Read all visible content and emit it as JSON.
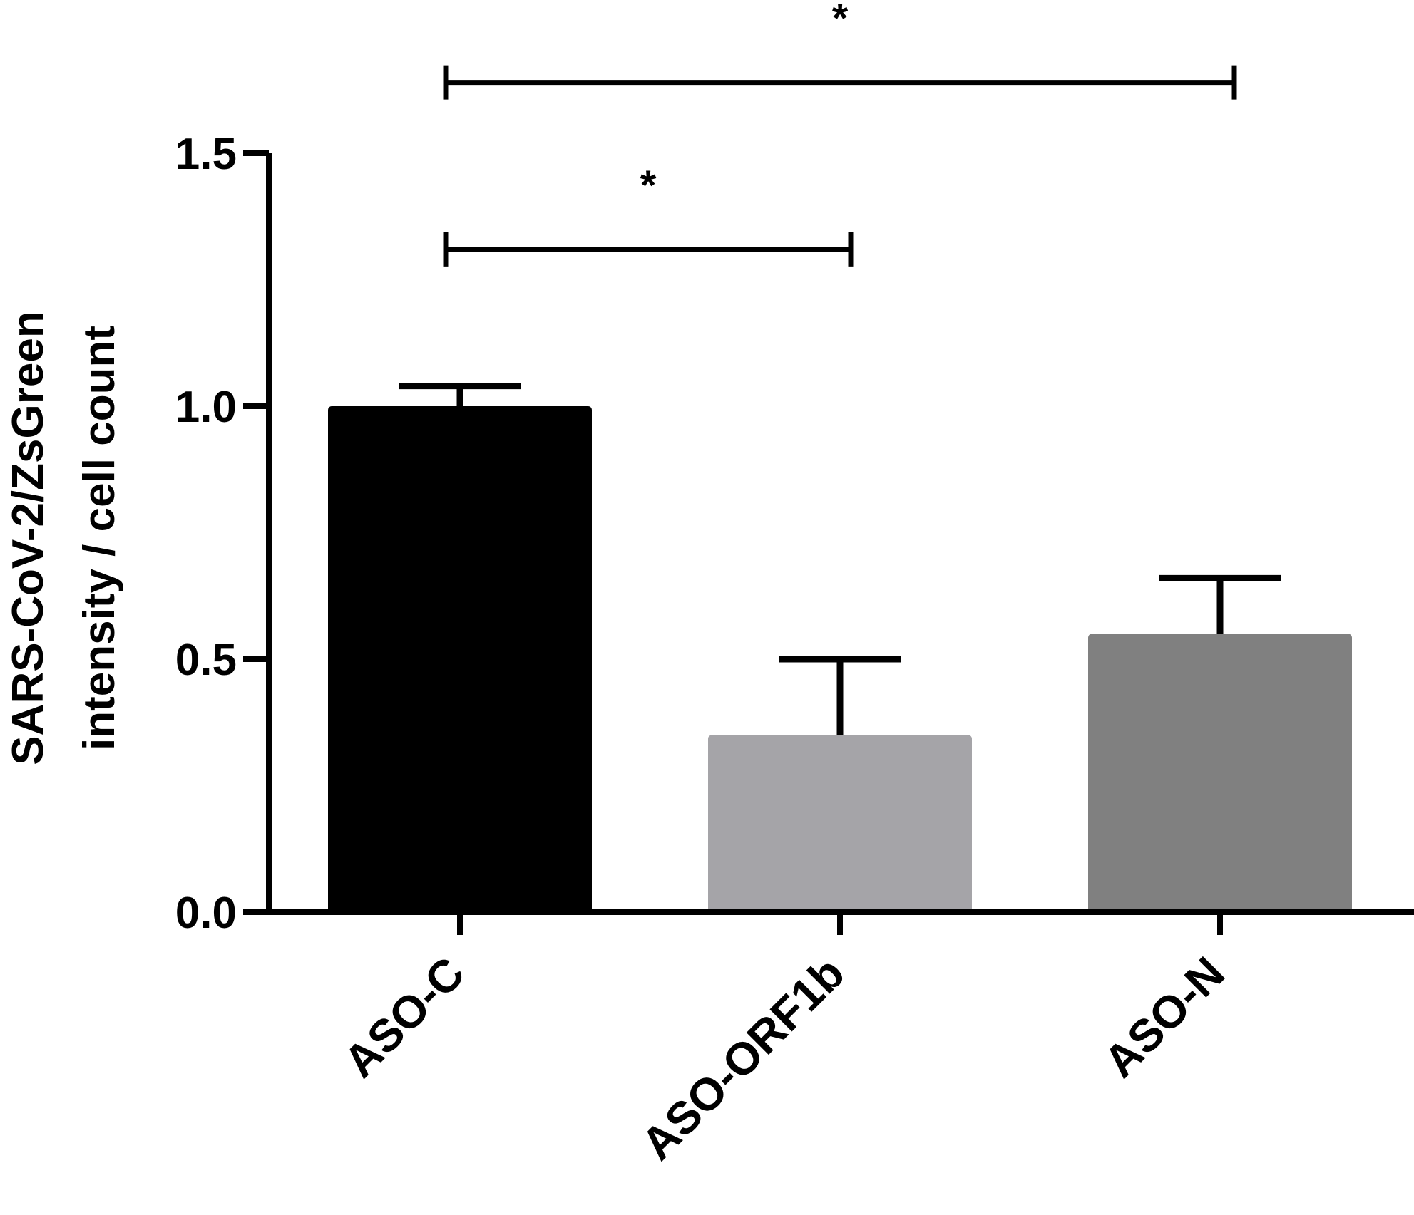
{
  "chart_data": {
    "type": "bar",
    "categories": [
      "ASO-C",
      "ASO-ORF1b",
      "ASO-N"
    ],
    "values": [
      1.0,
      0.35,
      0.55
    ],
    "errors": [
      0.04,
      0.15,
      0.11
    ],
    "bar_colors": [
      "#000000",
      "#a5a4a8",
      "#808080"
    ],
    "ylabel_line1": "SARS-CoV-2/ZsGreen",
    "ylabel_line2": "intensity / cell count",
    "xlabel": "",
    "ylim": [
      0,
      1.5
    ],
    "yticks": [
      "0.0",
      "0.5",
      "1.0",
      "1.5"
    ],
    "grid": false,
    "significance": [
      {
        "from": "ASO-C",
        "to": "ASO-ORF1b",
        "level": 1.31,
        "label": "*"
      },
      {
        "from": "ASO-C",
        "to": "ASO-N",
        "level": 1.64,
        "label": "*"
      }
    ]
  }
}
